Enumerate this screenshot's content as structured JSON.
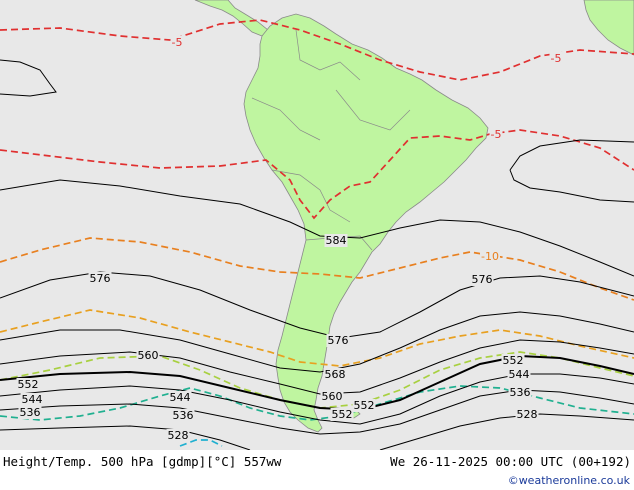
{
  "colors": {
    "ocean": "#e8e8e8",
    "land": "#bff5a0",
    "land_outline": "#8a8a8a",
    "height_line": "#000000",
    "temp_minus5": "#e03030",
    "temp_minus10": "#e88020",
    "temp_minus15": "#e8a020",
    "temp_minus20": "#a8d040",
    "temp_minus25": "#20b090",
    "temp_minus30": "#20b0d0",
    "credit": "#1a3a9a"
  },
  "height_labels": [
    "584",
    "576",
    "576",
    "576",
    "568",
    "560",
    "560",
    "552",
    "552",
    "552",
    "552",
    "544",
    "544",
    "544",
    "536",
    "536",
    "536",
    "528",
    "528"
  ],
  "temperature_labels": [
    "-5",
    "-5",
    "-5",
    "-10"
  ],
  "footer": {
    "title": "Height/Temp. 500 hPa [gdmp][°C] 557ww",
    "valid_time": "We 26-11-2025 00:00 UTC (00+192)",
    "credit": "©weatheronline.co.uk"
  }
}
